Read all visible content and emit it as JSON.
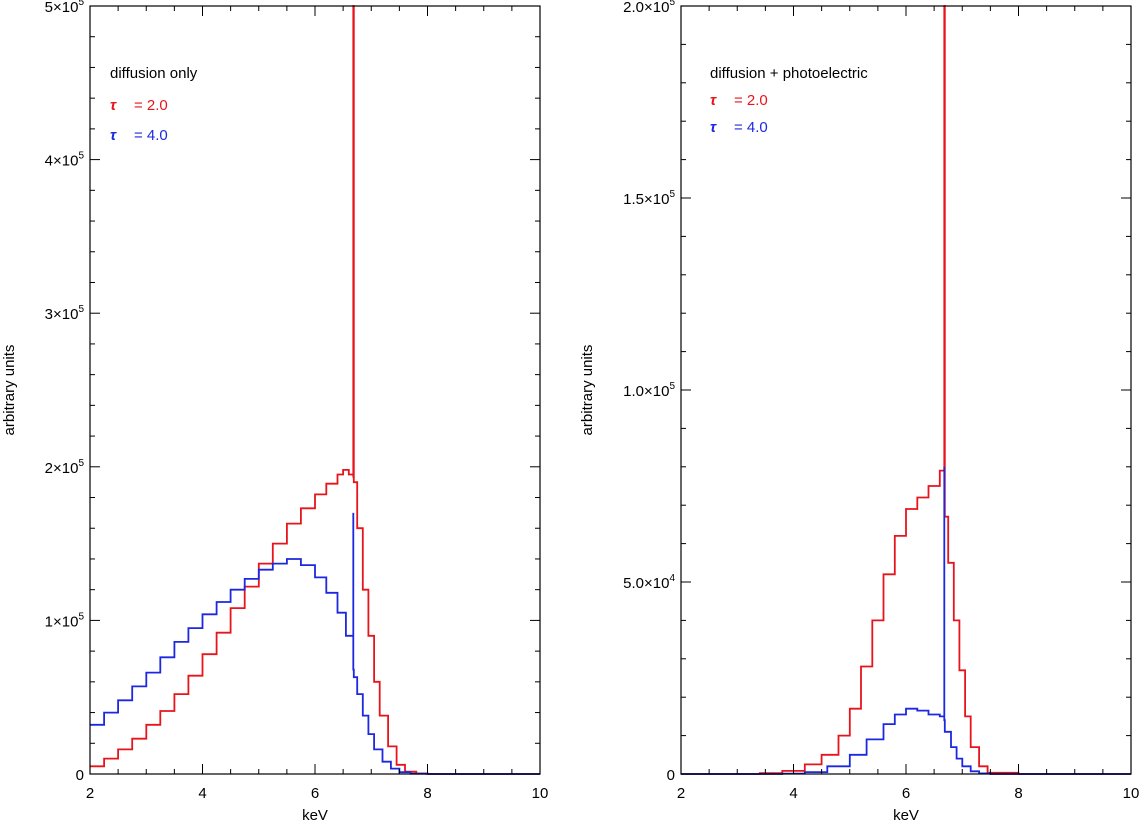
{
  "chart_data": [
    {
      "type": "line",
      "step": true,
      "title": "",
      "xlabel": "keV",
      "ylabel": "arbitrary units",
      "xlim": [
        2,
        10
      ],
      "ylim": [
        0,
        500000
      ],
      "xticks": [
        2,
        4,
        6,
        8,
        10
      ],
      "xtick_labels": [
        "2",
        "4",
        "6",
        "8",
        "10"
      ],
      "yticks": [
        0,
        100000,
        200000,
        300000,
        400000,
        500000
      ],
      "ytick_labels": [
        {
          "mant": "0",
          "exp": ""
        },
        {
          "mant": "1×10",
          "exp": "5"
        },
        {
          "mant": "2×10",
          "exp": "5"
        },
        {
          "mant": "3×10",
          "exp": "5"
        },
        {
          "mant": "4×10",
          "exp": "5"
        },
        {
          "mant": "5×10",
          "exp": "5"
        }
      ],
      "legend_title": "diffusion only",
      "legend_position": "top-left",
      "series": [
        {
          "name": "τ = 2.0",
          "label_symbol": "τ",
          "label_value": "= 2.0",
          "color": "#e8141c",
          "x": [
            2.0,
            2.25,
            2.5,
            2.75,
            3.0,
            3.25,
            3.5,
            3.75,
            4.0,
            4.25,
            4.5,
            4.75,
            5.0,
            5.25,
            5.5,
            5.75,
            6.0,
            6.2,
            6.4,
            6.5,
            6.6,
            6.68,
            6.68,
            6.69,
            6.75,
            6.85,
            6.95,
            7.05,
            7.15,
            7.3,
            7.45,
            7.6,
            7.8,
            8.0,
            9.0,
            10.0
          ],
          "y": [
            5000,
            10000,
            16000,
            23000,
            32000,
            41000,
            52000,
            64000,
            78000,
            92000,
            108000,
            122000,
            137000,
            150000,
            163000,
            173000,
            182000,
            189000,
            195000,
            198000,
            195000,
            193000,
            500000,
            190000,
            160000,
            120000,
            90000,
            60000,
            38000,
            18000,
            6000,
            1500,
            300,
            0,
            0,
            0
          ]
        },
        {
          "name": "τ = 4.0",
          "label_symbol": "τ",
          "label_value": "= 4.0",
          "color": "#1c28e0",
          "x": [
            2.0,
            2.25,
            2.5,
            2.75,
            3.0,
            3.25,
            3.5,
            3.75,
            4.0,
            4.25,
            4.5,
            4.75,
            5.0,
            5.25,
            5.5,
            5.75,
            6.0,
            6.2,
            6.4,
            6.55,
            6.68,
            6.68,
            6.68,
            6.69,
            6.75,
            6.85,
            6.95,
            7.05,
            7.2,
            7.35,
            7.5,
            7.7,
            8.0,
            9.0,
            10.0
          ],
          "y": [
            32000,
            40000,
            48000,
            57000,
            66000,
            76000,
            86000,
            95000,
            104000,
            112000,
            120000,
            127000,
            133000,
            137000,
            140000,
            136000,
            128000,
            118000,
            105000,
            90000,
            68000,
            170000,
            68000,
            63000,
            52000,
            38000,
            26000,
            16000,
            8000,
            3500,
            1200,
            200,
            0,
            0,
            0
          ]
        }
      ]
    },
    {
      "type": "line",
      "step": true,
      "title": "",
      "xlabel": "keV",
      "ylabel": "arbitrary units",
      "xlim": [
        2,
        10
      ],
      "ylim": [
        0,
        200000
      ],
      "xticks": [
        2,
        4,
        6,
        8,
        10
      ],
      "xtick_labels": [
        "2",
        "4",
        "6",
        "8",
        "10"
      ],
      "yticks": [
        0,
        50000,
        100000,
        150000,
        200000
      ],
      "ytick_labels": [
        {
          "mant": "0",
          "exp": ""
        },
        {
          "mant": "5.0×10",
          "exp": "4"
        },
        {
          "mant": "1.0×10",
          "exp": "5"
        },
        {
          "mant": "1.5×10",
          "exp": "5"
        },
        {
          "mant": "2.0×10",
          "exp": "5"
        }
      ],
      "legend_title": "diffusion + photoelectric",
      "legend_position": "top-left",
      "series": [
        {
          "name": "τ = 2.0",
          "label_symbol": "τ",
          "label_value": "= 2.0",
          "color": "#e8141c",
          "x": [
            2.0,
            3.0,
            3.4,
            3.8,
            4.2,
            4.5,
            4.8,
            5.0,
            5.2,
            5.4,
            5.6,
            5.8,
            6.0,
            6.2,
            6.4,
            6.6,
            6.68,
            6.68,
            6.69,
            6.75,
            6.85,
            6.95,
            7.05,
            7.15,
            7.3,
            7.45,
            8.0,
            10.0
          ],
          "y": [
            0,
            0,
            200,
            800,
            2500,
            5000,
            10000,
            17000,
            28000,
            40000,
            52000,
            62000,
            69000,
            72000,
            75000,
            79000,
            80000,
            200000,
            67000,
            55000,
            40000,
            27000,
            15000,
            7000,
            2000,
            300,
            0,
            0
          ]
        },
        {
          "name": "τ = 4.0",
          "label_symbol": "τ",
          "label_value": "= 4.0",
          "color": "#1c28e0",
          "x": [
            2.0,
            3.8,
            4.2,
            4.6,
            5.0,
            5.3,
            5.6,
            5.8,
            6.0,
            6.2,
            6.4,
            6.6,
            6.68,
            6.68,
            6.68,
            6.69,
            6.8,
            6.9,
            7.0,
            7.15,
            7.3,
            7.5,
            8.0,
            10.0
          ],
          "y": [
            0,
            100,
            500,
            2000,
            5000,
            9000,
            13000,
            15500,
            17000,
            16500,
            15500,
            15000,
            14000,
            80000,
            14000,
            11000,
            7000,
            4000,
            2000,
            700,
            150,
            0,
            0,
            0
          ]
        }
      ]
    }
  ]
}
